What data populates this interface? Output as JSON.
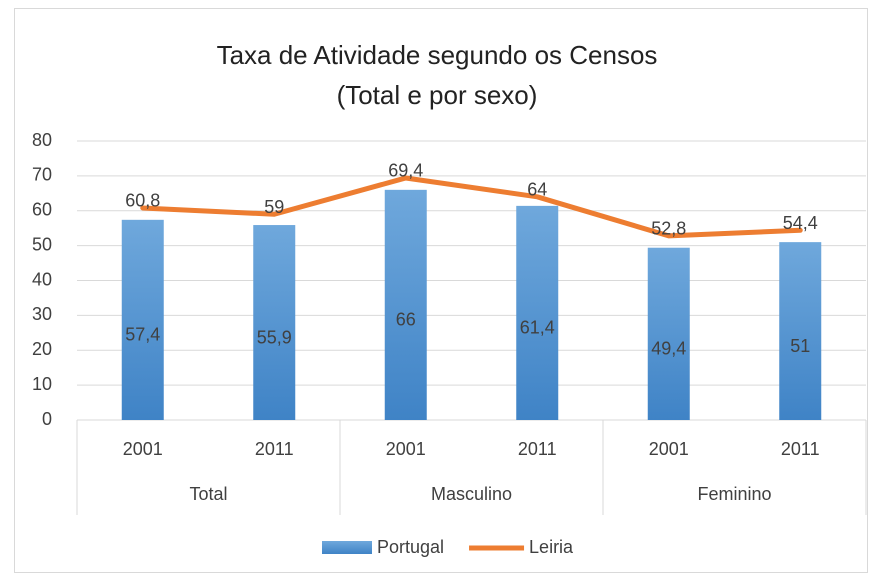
{
  "chart_data": {
    "type": "bar",
    "title": [
      "Taxa de Atividade segundo os Censos",
      "(Total e por sexo)"
    ],
    "categories": [
      "2001",
      "2011",
      "2001",
      "2011",
      "2001",
      "2011"
    ],
    "groups": [
      "Total",
      "Masculino",
      "Feminino"
    ],
    "series": [
      {
        "name": "Portugal",
        "type": "bar",
        "color": "#5b9bd5",
        "values": [
          57.4,
          55.9,
          66,
          61.4,
          49.4,
          51
        ],
        "value_labels": [
          "57,4",
          "55,9",
          "66",
          "61,4",
          "49,4",
          "51"
        ]
      },
      {
        "name": "Leiria",
        "type": "line",
        "color": "#ed7d31",
        "values": [
          60.8,
          59,
          69.4,
          64,
          52.8,
          54.4
        ],
        "value_labels": [
          "60,8",
          "59",
          "69,4",
          "64",
          "52,8",
          "54,4"
        ]
      }
    ],
    "ylim": [
      0,
      80
    ],
    "yticks": [
      0,
      10,
      20,
      30,
      40,
      50,
      60,
      70,
      80
    ],
    "grid": true,
    "legend": "bottom"
  }
}
